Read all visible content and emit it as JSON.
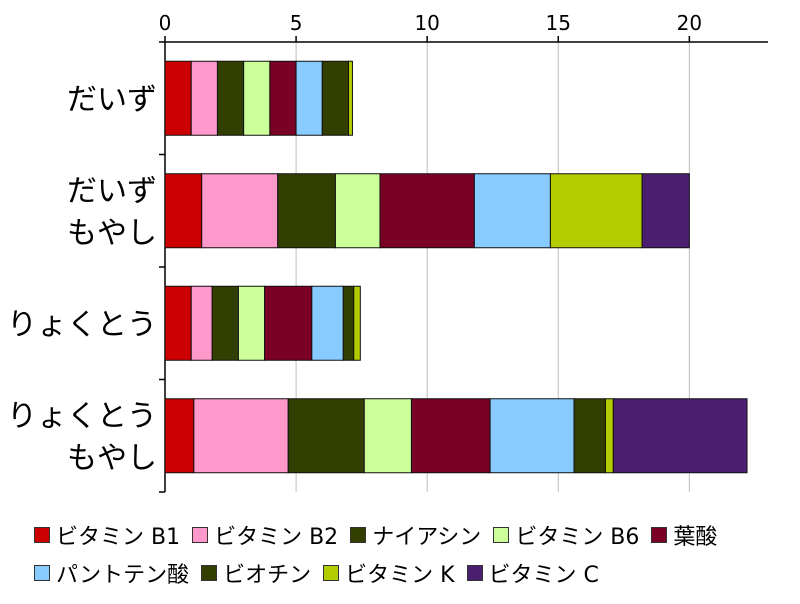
{
  "chart_data": {
    "type": "bar",
    "orientation": "horizontal",
    "stacked": true,
    "categories": [
      "だいず",
      "だいず\nもやし",
      "りょくとう",
      "りょくとう\nもやし"
    ],
    "x_ticks": [
      "0",
      "5",
      "10",
      "15",
      "20"
    ],
    "xlim": [
      0,
      23
    ],
    "grid": true,
    "legend_position": "bottom",
    "series": [
      {
        "name": "ビタミン B1",
        "color": "#cc0000",
        "values": [
          1.0,
          1.4,
          1.0,
          1.1
        ]
      },
      {
        "name": "ビタミン B2",
        "color": "#ff99cc",
        "values": [
          1.0,
          2.9,
          0.8,
          3.6
        ]
      },
      {
        "name": "ナイアシン",
        "color": "#333f00",
        "values": [
          1.0,
          2.2,
          1.0,
          2.9
        ]
      },
      {
        "name": "ビタミン B6",
        "color": "#ccff99",
        "values": [
          1.0,
          1.7,
          1.0,
          1.8
        ]
      },
      {
        "name": "葉酸",
        "color": "#7a0026",
        "values": [
          1.0,
          3.6,
          1.8,
          3.0
        ]
      },
      {
        "name": "パントテン酸",
        "color": "#88ccff",
        "values": [
          1.0,
          2.9,
          1.2,
          3.2
        ]
      },
      {
        "name": "ビオチン",
        "color": "#333f00",
        "values": [
          1.0,
          0.0,
          0.4,
          1.2
        ]
      },
      {
        "name": "ビタミン K",
        "color": "#b3cc00",
        "values": [
          0.15,
          3.5,
          0.25,
          0.3
        ]
      },
      {
        "name": "ビタミン C",
        "color": "#4b1f6f",
        "values": [
          0.0,
          1.8,
          0.0,
          5.1
        ]
      }
    ],
    "title": "",
    "xlabel": "",
    "ylabel": ""
  }
}
